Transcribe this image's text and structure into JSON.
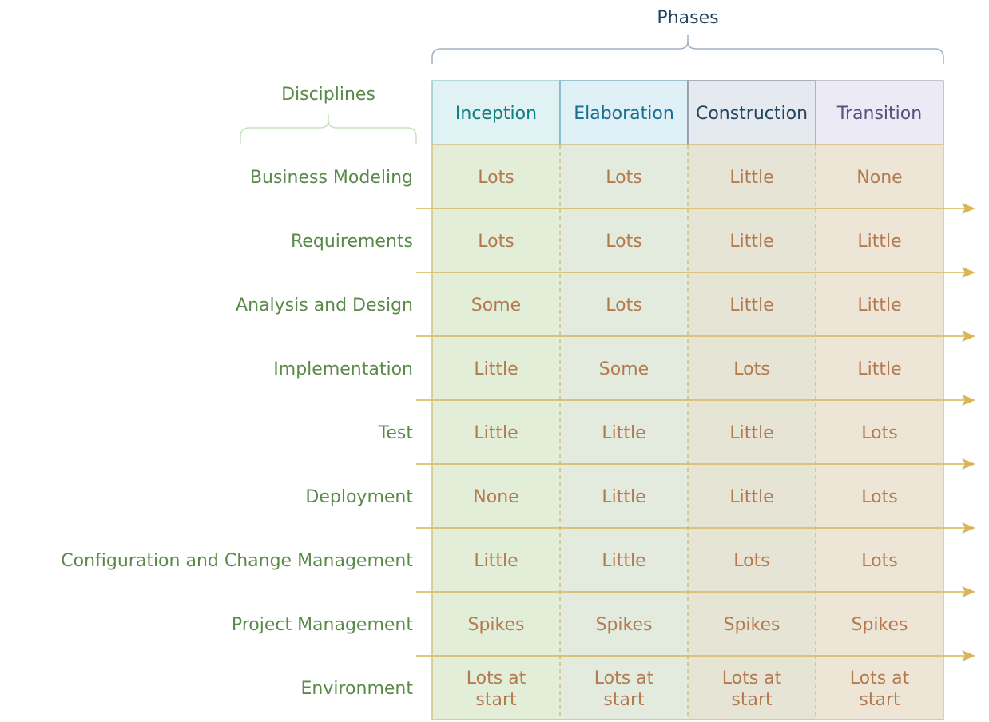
{
  "phases_label": "Phases",
  "disciplines_label": "Disciplines",
  "phases": [
    {
      "name": "Inception",
      "header_bg": "#e0f2f4",
      "header_border": "#80c0c0",
      "text_color": "#0e7e7e"
    },
    {
      "name": "Elaboration",
      "header_bg": "#dff0f7",
      "header_border": "#5a9db0",
      "text_color": "#1a6f8f"
    },
    {
      "name": "Construction",
      "header_bg": "#e5eaf0",
      "header_border": "#6a7b8c",
      "text_color": "#23445d"
    },
    {
      "name": "Transition",
      "header_bg": "#ebeaf5",
      "header_border": "#a09ab8",
      "text_color": "#56517e"
    }
  ],
  "disciplines": [
    {
      "name": "Business Modeling",
      "levels": [
        "Lots",
        "Lots",
        "Little",
        "None"
      ]
    },
    {
      "name": "Requirements",
      "levels": [
        "Lots",
        "Lots",
        "Little",
        "Little"
      ]
    },
    {
      "name": "Analysis and Design",
      "levels": [
        "Some",
        "Lots",
        "Little",
        "Little"
      ]
    },
    {
      "name": "Implementation",
      "levels": [
        "Little",
        "Some",
        "Lots",
        "Little"
      ]
    },
    {
      "name": "Test",
      "levels": [
        "Little",
        "Little",
        "Little",
        "Lots"
      ]
    },
    {
      "name": "Deployment",
      "levels": [
        "None",
        "Little",
        "Little",
        "Lots"
      ]
    },
    {
      "name": "Configuration and Change Management",
      "levels": [
        "Little",
        "Little",
        "Lots",
        "Lots"
      ]
    },
    {
      "name": "Project Management",
      "levels": [
        "Spikes",
        "Spikes",
        "Spikes",
        "Spikes"
      ]
    },
    {
      "name": "Environment",
      "levels": [
        "Lots at start",
        "Lots at start",
        "Lots at start",
        "Lots at start"
      ]
    }
  ],
  "colors": {
    "phase_label": "#23445d",
    "phase_brace": "#a0b0c0",
    "discipline_label": "#5a8a4a",
    "discipline_brace": "#c8e0c0",
    "cell_text": "#b47a4e",
    "column_bg": [
      "#e2eed8",
      "#e2ebdd",
      "#e6e4d5",
      "#ede5d6"
    ],
    "arrow": "#d6b656",
    "divider": "#c9c08a",
    "outline": "#d6c080"
  }
}
